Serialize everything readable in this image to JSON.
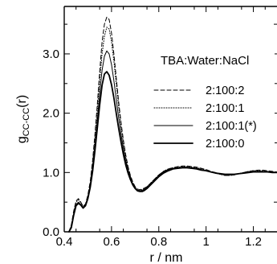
{
  "chart_data": {
    "type": "line",
    "xlabel": "r / nm",
    "ylabel_main": "g",
    "ylabel_sub": "CC-CC",
    "ylabel_suffix": "(r)",
    "xlim": [
      0.4,
      1.3
    ],
    "ylim": [
      0.0,
      3.8
    ],
    "xticks": [
      0.4,
      0.6,
      0.8,
      1.0,
      1.2
    ],
    "xtick_labels": [
      "0.4",
      "0.6",
      "0.8",
      "1",
      "1.2"
    ],
    "yticks": [
      0.0,
      1.0,
      2.0,
      3.0
    ],
    "ytick_labels": [
      "0.0",
      "1.0",
      "2.0",
      "3.0"
    ],
    "grid": false,
    "legend_position": "right",
    "legend_title": "TBA:Water:NaCl",
    "series": [
      {
        "name": "2:100:2",
        "style": "dashed",
        "width": 1.0,
        "points": [
          [
            0.42,
            0.0
          ],
          [
            0.43,
            0.12
          ],
          [
            0.44,
            0.35
          ],
          [
            0.45,
            0.52
          ],
          [
            0.46,
            0.56
          ],
          [
            0.47,
            0.5
          ],
          [
            0.48,
            0.43
          ],
          [
            0.49,
            0.47
          ],
          [
            0.5,
            0.62
          ],
          [
            0.51,
            0.85
          ],
          [
            0.52,
            1.2
          ],
          [
            0.53,
            1.65
          ],
          [
            0.54,
            2.15
          ],
          [
            0.55,
            2.7
          ],
          [
            0.56,
            3.2
          ],
          [
            0.57,
            3.5
          ],
          [
            0.58,
            3.62
          ],
          [
            0.59,
            3.58
          ],
          [
            0.6,
            3.35
          ],
          [
            0.61,
            3.0
          ],
          [
            0.62,
            2.6
          ],
          [
            0.63,
            2.2
          ],
          [
            0.64,
            1.85
          ],
          [
            0.65,
            1.55
          ],
          [
            0.66,
            1.3
          ],
          [
            0.67,
            1.1
          ],
          [
            0.68,
            0.95
          ],
          [
            0.69,
            0.84
          ],
          [
            0.7,
            0.76
          ],
          [
            0.71,
            0.72
          ],
          [
            0.72,
            0.71
          ],
          [
            0.73,
            0.72
          ],
          [
            0.74,
            0.74
          ],
          [
            0.75,
            0.76
          ],
          [
            0.76,
            0.8
          ],
          [
            0.78,
            0.88
          ],
          [
            0.8,
            0.96
          ],
          [
            0.82,
            1.02
          ],
          [
            0.84,
            1.06
          ],
          [
            0.86,
            1.08
          ],
          [
            0.88,
            1.1
          ],
          [
            0.9,
            1.11
          ],
          [
            0.92,
            1.11
          ],
          [
            0.94,
            1.1
          ],
          [
            0.96,
            1.09
          ],
          [
            0.98,
            1.07
          ],
          [
            1.0,
            1.05
          ],
          [
            1.02,
            1.02
          ],
          [
            1.04,
            1.0
          ],
          [
            1.06,
            0.97
          ],
          [
            1.08,
            0.95
          ],
          [
            1.1,
            0.95
          ],
          [
            1.12,
            0.96
          ],
          [
            1.14,
            0.98
          ],
          [
            1.16,
            1.0
          ],
          [
            1.18,
            1.02
          ],
          [
            1.2,
            1.03
          ],
          [
            1.22,
            1.04
          ],
          [
            1.24,
            1.04
          ],
          [
            1.26,
            1.03
          ],
          [
            1.28,
            1.02
          ],
          [
            1.3,
            1.01
          ]
        ]
      },
      {
        "name": "2:100:1",
        "style": "dotted",
        "width": 1.0,
        "points": [
          [
            0.42,
            0.0
          ],
          [
            0.43,
            0.1
          ],
          [
            0.44,
            0.32
          ],
          [
            0.45,
            0.5
          ],
          [
            0.46,
            0.54
          ],
          [
            0.47,
            0.49
          ],
          [
            0.48,
            0.42
          ],
          [
            0.49,
            0.46
          ],
          [
            0.5,
            0.6
          ],
          [
            0.51,
            0.82
          ],
          [
            0.52,
            1.15
          ],
          [
            0.53,
            1.58
          ],
          [
            0.54,
            2.05
          ],
          [
            0.55,
            2.55
          ],
          [
            0.56,
            3.0
          ],
          [
            0.57,
            3.3
          ],
          [
            0.58,
            3.45
          ],
          [
            0.59,
            3.42
          ],
          [
            0.6,
            3.2
          ],
          [
            0.61,
            2.88
          ],
          [
            0.62,
            2.5
          ],
          [
            0.63,
            2.12
          ],
          [
            0.64,
            1.78
          ],
          [
            0.65,
            1.5
          ],
          [
            0.66,
            1.26
          ],
          [
            0.67,
            1.07
          ],
          [
            0.68,
            0.93
          ],
          [
            0.69,
            0.82
          ],
          [
            0.7,
            0.75
          ],
          [
            0.71,
            0.71
          ],
          [
            0.72,
            0.7
          ],
          [
            0.73,
            0.71
          ],
          [
            0.74,
            0.73
          ],
          [
            0.75,
            0.76
          ],
          [
            0.76,
            0.8
          ],
          [
            0.78,
            0.88
          ],
          [
            0.8,
            0.96
          ],
          [
            0.82,
            1.02
          ],
          [
            0.84,
            1.06
          ],
          [
            0.86,
            1.08
          ],
          [
            0.88,
            1.09
          ],
          [
            0.9,
            1.1
          ],
          [
            0.92,
            1.1
          ],
          [
            0.94,
            1.09
          ],
          [
            0.96,
            1.08
          ],
          [
            0.98,
            1.06
          ],
          [
            1.0,
            1.04
          ],
          [
            1.02,
            1.01
          ],
          [
            1.04,
            0.99
          ],
          [
            1.06,
            0.97
          ],
          [
            1.08,
            0.95
          ],
          [
            1.1,
            0.95
          ],
          [
            1.12,
            0.96
          ],
          [
            1.14,
            0.98
          ],
          [
            1.16,
            1.0
          ],
          [
            1.18,
            1.02
          ],
          [
            1.2,
            1.03
          ],
          [
            1.22,
            1.03
          ],
          [
            1.24,
            1.03
          ],
          [
            1.26,
            1.02
          ],
          [
            1.28,
            1.01
          ],
          [
            1.3,
            1.0
          ]
        ]
      },
      {
        "name": "2:100:1(*)",
        "style": "solid",
        "width": 1.0,
        "points": [
          [
            0.42,
            0.0
          ],
          [
            0.43,
            0.08
          ],
          [
            0.44,
            0.3
          ],
          [
            0.45,
            0.46
          ],
          [
            0.46,
            0.5
          ],
          [
            0.47,
            0.46
          ],
          [
            0.48,
            0.41
          ],
          [
            0.49,
            0.45
          ],
          [
            0.5,
            0.58
          ],
          [
            0.51,
            0.78
          ],
          [
            0.52,
            1.08
          ],
          [
            0.53,
            1.46
          ],
          [
            0.54,
            1.88
          ],
          [
            0.55,
            2.33
          ],
          [
            0.56,
            2.72
          ],
          [
            0.57,
            2.96
          ],
          [
            0.58,
            3.05
          ],
          [
            0.59,
            3.0
          ],
          [
            0.6,
            2.82
          ],
          [
            0.61,
            2.55
          ],
          [
            0.62,
            2.24
          ],
          [
            0.63,
            1.93
          ],
          [
            0.64,
            1.65
          ],
          [
            0.65,
            1.41
          ],
          [
            0.66,
            1.2
          ],
          [
            0.67,
            1.04
          ],
          [
            0.68,
            0.91
          ],
          [
            0.69,
            0.81
          ],
          [
            0.7,
            0.74
          ],
          [
            0.71,
            0.7
          ],
          [
            0.72,
            0.69
          ],
          [
            0.73,
            0.7
          ],
          [
            0.74,
            0.72
          ],
          [
            0.75,
            0.75
          ],
          [
            0.76,
            0.79
          ],
          [
            0.78,
            0.87
          ],
          [
            0.8,
            0.95
          ],
          [
            0.82,
            1.01
          ],
          [
            0.84,
            1.05
          ],
          [
            0.86,
            1.07
          ],
          [
            0.88,
            1.08
          ],
          [
            0.9,
            1.09
          ],
          [
            0.92,
            1.09
          ],
          [
            0.94,
            1.08
          ],
          [
            0.96,
            1.07
          ],
          [
            0.98,
            1.05
          ],
          [
            1.0,
            1.03
          ],
          [
            1.02,
            1.01
          ],
          [
            1.04,
            0.99
          ],
          [
            1.06,
            0.97
          ],
          [
            1.08,
            0.96
          ],
          [
            1.1,
            0.96
          ],
          [
            1.12,
            0.97
          ],
          [
            1.14,
            0.98
          ],
          [
            1.16,
            1.0
          ],
          [
            1.18,
            1.01
          ],
          [
            1.2,
            1.02
          ],
          [
            1.22,
            1.02
          ],
          [
            1.24,
            1.02
          ],
          [
            1.26,
            1.01
          ],
          [
            1.28,
            1.01
          ],
          [
            1.3,
            1.0
          ]
        ]
      },
      {
        "name": "2:100:0",
        "style": "solid",
        "width": 1.8,
        "points": [
          [
            0.42,
            0.0
          ],
          [
            0.43,
            0.07
          ],
          [
            0.44,
            0.28
          ],
          [
            0.45,
            0.44
          ],
          [
            0.46,
            0.48
          ],
          [
            0.47,
            0.45
          ],
          [
            0.48,
            0.4
          ],
          [
            0.49,
            0.44
          ],
          [
            0.5,
            0.56
          ],
          [
            0.51,
            0.75
          ],
          [
            0.52,
            1.02
          ],
          [
            0.53,
            1.37
          ],
          [
            0.54,
            1.75
          ],
          [
            0.55,
            2.14
          ],
          [
            0.56,
            2.47
          ],
          [
            0.57,
            2.66
          ],
          [
            0.58,
            2.7
          ],
          [
            0.59,
            2.64
          ],
          [
            0.6,
            2.48
          ],
          [
            0.61,
            2.26
          ],
          [
            0.62,
            2.0
          ],
          [
            0.63,
            1.75
          ],
          [
            0.64,
            1.52
          ],
          [
            0.65,
            1.31
          ],
          [
            0.66,
            1.13
          ],
          [
            0.67,
            0.99
          ],
          [
            0.68,
            0.88
          ],
          [
            0.69,
            0.79
          ],
          [
            0.7,
            0.73
          ],
          [
            0.71,
            0.69
          ],
          [
            0.72,
            0.68
          ],
          [
            0.73,
            0.68
          ],
          [
            0.74,
            0.7
          ],
          [
            0.75,
            0.73
          ],
          [
            0.76,
            0.77
          ],
          [
            0.78,
            0.85
          ],
          [
            0.8,
            0.93
          ],
          [
            0.82,
            0.99
          ],
          [
            0.84,
            1.03
          ],
          [
            0.86,
            1.06
          ],
          [
            0.88,
            1.07
          ],
          [
            0.9,
            1.08
          ],
          [
            0.92,
            1.08
          ],
          [
            0.94,
            1.07
          ],
          [
            0.96,
            1.06
          ],
          [
            0.98,
            1.04
          ],
          [
            1.0,
            1.03
          ],
          [
            1.02,
            1.01
          ],
          [
            1.04,
            0.99
          ],
          [
            1.06,
            0.98
          ],
          [
            1.08,
            0.97
          ],
          [
            1.1,
            0.97
          ],
          [
            1.12,
            0.97
          ],
          [
            1.14,
            0.98
          ],
          [
            1.16,
            0.99
          ],
          [
            1.18,
            1.0
          ],
          [
            1.2,
            1.01
          ],
          [
            1.22,
            1.01
          ],
          [
            1.24,
            1.01
          ],
          [
            1.26,
            1.01
          ],
          [
            1.28,
            1.0
          ],
          [
            1.3,
            1.0
          ]
        ]
      }
    ]
  }
}
